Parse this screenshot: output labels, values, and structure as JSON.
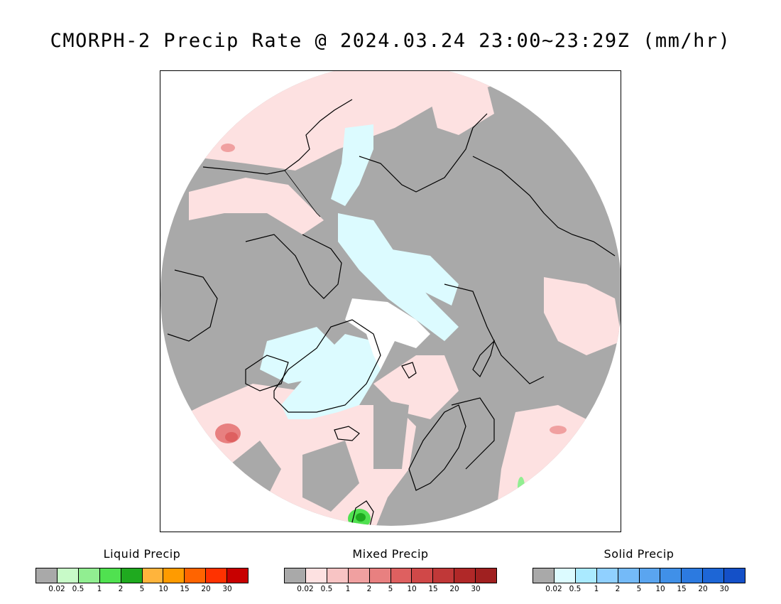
{
  "title": "CMORPH-2 Precip Rate @ 2024.03.24 23:00~23:29Z (mm/hr)",
  "map": {
    "projection": "north-polar-stereographic",
    "colors": {
      "no_precip": "#a9a9a9",
      "light_mixed": "#fde1e1",
      "light_solid": "#dcfbff",
      "ice_cap": "#ffffff",
      "coast": "#000000"
    }
  },
  "legends": [
    {
      "title": "Liquid Precip",
      "colors": [
        "#a9a9a9",
        "#c8fac8",
        "#91ee91",
        "#50e150",
        "#1faa1f",
        "#ffb43c",
        "#ff9b00",
        "#ff6400",
        "#ff3200",
        "#c80000"
      ],
      "ticks": [
        "0.02",
        "0.5",
        "1",
        "2",
        "5",
        "10",
        "15",
        "20",
        "30"
      ]
    },
    {
      "title": "Mixed Precip",
      "colors": [
        "#a9a9a9",
        "#fde1e1",
        "#f8c4c4",
        "#f0a0a0",
        "#e88080",
        "#de6060",
        "#d04848",
        "#c03838",
        "#b02828",
        "#a02020"
      ],
      "ticks": [
        "0.02",
        "0.5",
        "1",
        "2",
        "5",
        "10",
        "15",
        "20",
        "30"
      ]
    },
    {
      "title": "Solid Precip",
      "colors": [
        "#a9a9a9",
        "#dcfbff",
        "#aaeaff",
        "#90d0ff",
        "#74baf8",
        "#5aa5f0",
        "#4090e8",
        "#2c7ae0",
        "#1d66d6",
        "#1450c8"
      ],
      "ticks": [
        "0.02",
        "0.5",
        "1",
        "2",
        "5",
        "10",
        "15",
        "20",
        "30"
      ]
    }
  ]
}
